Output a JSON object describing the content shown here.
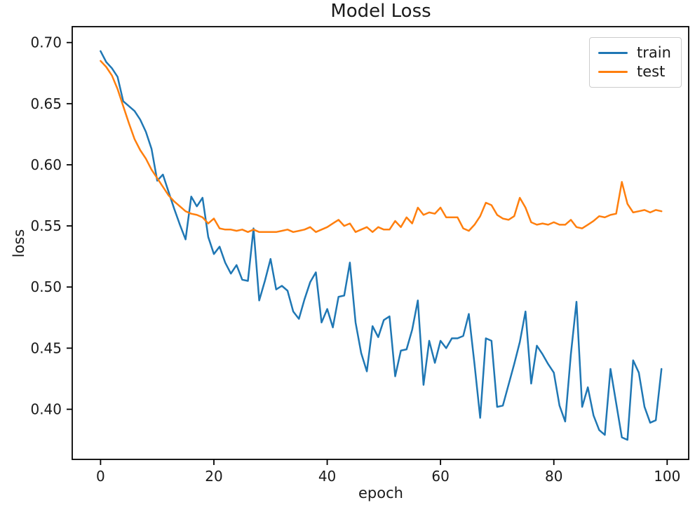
{
  "chart_data": {
    "type": "line",
    "title": "Model Loss",
    "xlabel": "epoch",
    "ylabel": "loss",
    "x": [
      0,
      1,
      2,
      3,
      4,
      5,
      6,
      7,
      8,
      9,
      10,
      11,
      12,
      13,
      14,
      15,
      16,
      17,
      18,
      19,
      20,
      21,
      22,
      23,
      24,
      25,
      26,
      27,
      28,
      29,
      30,
      31,
      32,
      33,
      34,
      35,
      36,
      37,
      38,
      39,
      40,
      41,
      42,
      43,
      44,
      45,
      46,
      47,
      48,
      49,
      50,
      51,
      52,
      53,
      54,
      55,
      56,
      57,
      58,
      59,
      60,
      61,
      62,
      63,
      64,
      65,
      66,
      67,
      68,
      69,
      70,
      71,
      72,
      73,
      74,
      75,
      76,
      77,
      78,
      79,
      80,
      81,
      82,
      83,
      84,
      85,
      86,
      87,
      88,
      89,
      90,
      91,
      92,
      93,
      94,
      95,
      96,
      97,
      98,
      99
    ],
    "series": [
      {
        "name": "train",
        "color": "#1f77b4",
        "values": [
          0.693,
          0.684,
          0.679,
          0.672,
          0.652,
          0.648,
          0.644,
          0.637,
          0.627,
          0.613,
          0.587,
          0.592,
          0.578,
          0.564,
          0.551,
          0.539,
          0.574,
          0.566,
          0.573,
          0.541,
          0.527,
          0.533,
          0.52,
          0.511,
          0.518,
          0.506,
          0.505,
          0.548,
          0.489,
          0.505,
          0.523,
          0.498,
          0.501,
          0.497,
          0.48,
          0.474,
          0.49,
          0.504,
          0.512,
          0.471,
          0.482,
          0.467,
          0.492,
          0.493,
          0.52,
          0.471,
          0.446,
          0.431,
          0.468,
          0.459,
          0.473,
          0.476,
          0.427,
          0.448,
          0.449,
          0.465,
          0.489,
          0.42,
          0.456,
          0.438,
          0.456,
          0.45,
          0.458,
          0.458,
          0.46,
          0.478,
          0.437,
          0.393,
          0.458,
          0.456,
          0.402,
          0.403,
          0.42,
          0.437,
          0.455,
          0.48,
          0.421,
          0.452,
          0.445,
          0.437,
          0.43,
          0.403,
          0.39,
          0.445,
          0.488,
          0.402,
          0.418,
          0.395,
          0.383,
          0.379,
          0.433,
          0.405,
          0.377,
          0.375,
          0.44,
          0.43,
          0.402,
          0.389,
          0.391,
          0.433
        ]
      },
      {
        "name": "test",
        "color": "#ff7f0e",
        "values": [
          0.685,
          0.68,
          0.673,
          0.662,
          0.648,
          0.634,
          0.621,
          0.612,
          0.605,
          0.596,
          0.589,
          0.582,
          0.575,
          0.57,
          0.566,
          0.562,
          0.56,
          0.559,
          0.557,
          0.552,
          0.556,
          0.548,
          0.547,
          0.547,
          0.546,
          0.547,
          0.545,
          0.547,
          0.545,
          0.545,
          0.545,
          0.545,
          0.546,
          0.547,
          0.545,
          0.546,
          0.547,
          0.549,
          0.545,
          0.547,
          0.549,
          0.552,
          0.555,
          0.55,
          0.552,
          0.545,
          0.547,
          0.549,
          0.545,
          0.549,
          0.547,
          0.547,
          0.554,
          0.549,
          0.557,
          0.552,
          0.565,
          0.559,
          0.561,
          0.56,
          0.565,
          0.557,
          0.557,
          0.557,
          0.548,
          0.546,
          0.551,
          0.558,
          0.569,
          0.567,
          0.559,
          0.556,
          0.555,
          0.558,
          0.573,
          0.565,
          0.553,
          0.551,
          0.552,
          0.551,
          0.553,
          0.551,
          0.551,
          0.555,
          0.549,
          0.548,
          0.551,
          0.554,
          0.558,
          0.557,
          0.559,
          0.56,
          0.586,
          0.568,
          0.561,
          0.562,
          0.563,
          0.561,
          0.563,
          0.562
        ]
      }
    ],
    "xticks": [
      0,
      20,
      40,
      60,
      80,
      100
    ],
    "ytick_labels": [
      "0.40",
      "0.45",
      "0.50",
      "0.55",
      "0.60",
      "0.65",
      "0.70"
    ],
    "xlim": [
      -5,
      103.8
    ],
    "ylim": [
      0.359,
      0.713
    ],
    "grid": false,
    "legend_position": "upper right",
    "line_width": 2.5,
    "spine_color": "#000000",
    "tick_color": "#1a1a1a",
    "tick_font_size": 20
  }
}
